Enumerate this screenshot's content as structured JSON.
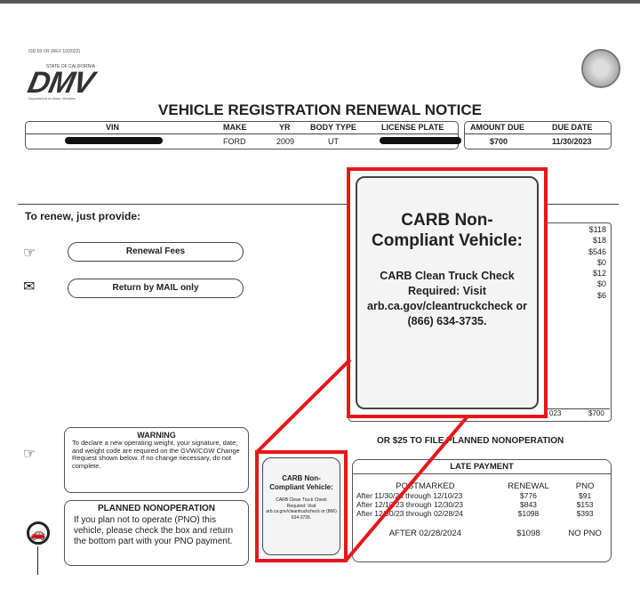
{
  "form_id": "ISD 03 VR (REV 10/2022)",
  "logo": {
    "state": "STATE OF CALIFORNIA",
    "text": "DMV",
    "dept": "Department of Motor Vehicles"
  },
  "title": "VEHICLE REGISTRATION RENEWAL NOTICE",
  "vehicle": {
    "headers": [
      "VIN",
      "MAKE",
      "YR",
      "BODY TYPE",
      "LICENSE PLATE"
    ],
    "make": "FORD",
    "yr": "2009",
    "body_type": "UT"
  },
  "payment": {
    "amount_due_label": "AMOUNT DUE",
    "due_date_label": "DUE DATE",
    "amount_due": "$700",
    "due_date": "11/30/2023"
  },
  "renew": {
    "heading": "To renew, just provide:",
    "renewal_fees": "Renewal Fees",
    "return_mail": "Return by MAIL only"
  },
  "fees": [
    "$118",
    "$18",
    "$546",
    "$0",
    "$12",
    "$0",
    "$6"
  ],
  "fees_total": {
    "date_fragment": "023",
    "total": "$700"
  },
  "callout": {
    "title": "CARB Non-Compliant Vehicle:",
    "body": "CARB Clean Truck Check Required: Visit arb.ca.gov/cleantruckcheck or (866) 634-3735."
  },
  "warning": {
    "title": "WARNING",
    "body": "To declare a new operating weight, your signature, date, and weight code are required on the GVW/CGW Change Request shown below. If no change necessary, do not complete."
  },
  "pno": {
    "title": "PLANNED NONOPERATION",
    "body": "If you plan not to operate (PNO) this vehicle, please check the box and return the bottom part with your PNO payment."
  },
  "pno_fee": "OR $25 TO FILE PLANNED NONOPERATION",
  "late": {
    "title": "LATE PAYMENT",
    "headers": [
      "POSTMARKED",
      "RENEWAL",
      "PNO"
    ],
    "rows": [
      [
        "After 11/30/23 through 12/10/23",
        "$776",
        "$91"
      ],
      [
        "After 12/10/23 through 12/30/23",
        "$843",
        "$153"
      ],
      [
        "After 12/30/23 through 02/28/24",
        "$1098",
        "$393"
      ]
    ],
    "final": [
      "AFTER 02/28/2024",
      "$1098",
      "NO PNO"
    ]
  },
  "colors": {
    "highlight": "#e8161b"
  }
}
